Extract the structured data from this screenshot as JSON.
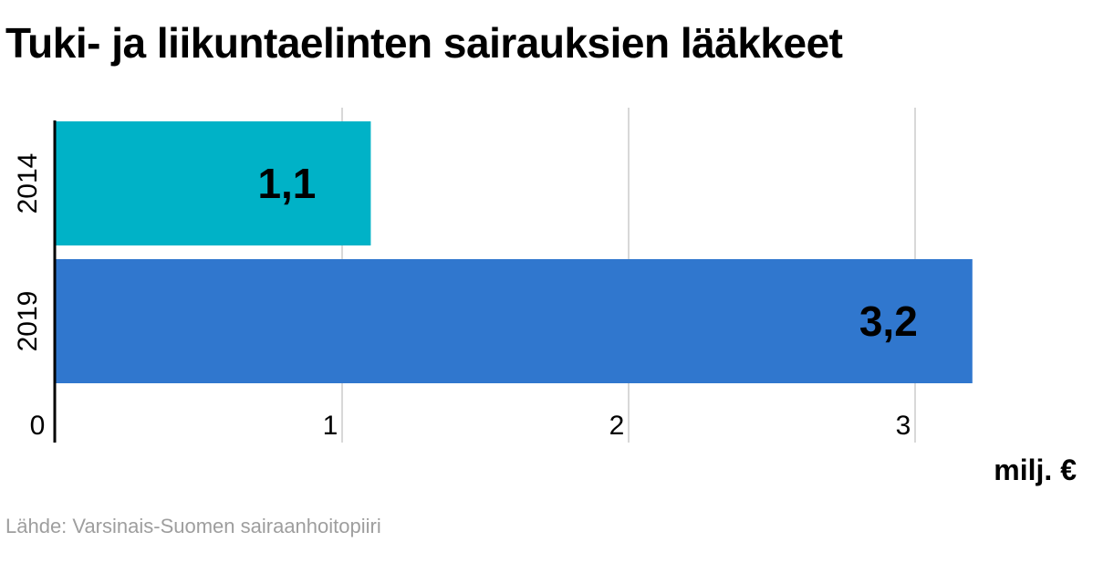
{
  "chart_data": {
    "type": "bar",
    "orientation": "horizontal",
    "title": "Tuki- ja liikuntaelinten sairauksien lääkkeet",
    "categories": [
      "2014",
      "2019"
    ],
    "values": [
      1.1,
      3.2
    ],
    "value_labels": [
      "1,1",
      "3,2"
    ],
    "colors": [
      "#00b2c7",
      "#3077ce"
    ],
    "xlabel": "milj. €",
    "ylabel": "",
    "xlim": [
      0,
      3.2
    ],
    "xticks": [
      0,
      1,
      2,
      3
    ],
    "xtick_labels": [
      "0",
      "1",
      "2",
      "3"
    ],
    "grid": true,
    "source": "Lähde: Varsinais-Suomen sairaanhoitopiiri"
  }
}
